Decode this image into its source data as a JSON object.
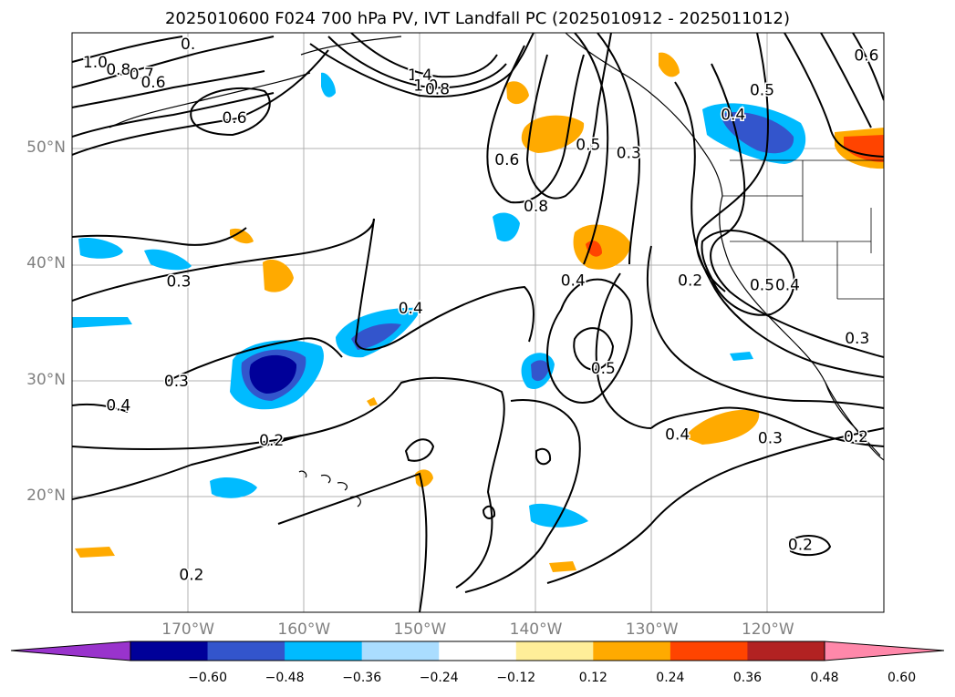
{
  "title": "2025010600 F024 700 hPa PV, IVT Landfall PC (2025010912 - 2025011012)",
  "lat_labels": [
    {
      "text": "50°N",
      "lat": 50
    },
    {
      "text": "40°N",
      "lat": 40
    },
    {
      "text": "30°N",
      "lat": 30
    },
    {
      "text": "20°N",
      "lat": 20
    }
  ],
  "lon_labels": [
    {
      "text": "170°W",
      "lon": -170
    },
    {
      "text": "160°W",
      "lon": -160
    },
    {
      "text": "150°W",
      "lon": -150
    },
    {
      "text": "140°W",
      "lon": -140
    },
    {
      "text": "130°W",
      "lon": -130
    },
    {
      "text": "120°W",
      "lon": -120
    }
  ],
  "extent": {
    "lon_min": -180,
    "lon_max": -110,
    "lat_min": 10,
    "lat_max": 60
  },
  "grid": true,
  "colorbar": {
    "levels": [
      -0.6,
      -0.48,
      -0.36,
      -0.24,
      -0.12,
      0.12,
      0.24,
      0.36,
      0.48,
      0.6
    ],
    "tick_labels": [
      "−0.60",
      "−0.48",
      "−0.36",
      "−0.24",
      "−0.12",
      "0.12",
      "0.24",
      "0.36",
      "0.48",
      "0.60"
    ],
    "under_color": "#9933cc",
    "over_color": "#ff88aa",
    "colors": [
      "#000099",
      "#3355cc",
      "#00bbff",
      "#aaddff",
      "#ffffff",
      "#ffee99",
      "#ffaa00",
      "#ff4400",
      "#b22222"
    ]
  },
  "contour_labels": [
    {
      "text": "1.0",
      "lon": -178,
      "lat": 57
    },
    {
      "text": "0.8",
      "lon": -176,
      "lat": 56.4
    },
    {
      "text": "0.7",
      "lon": -174,
      "lat": 56
    },
    {
      "text": "0.6",
      "lon": -173,
      "lat": 55.3
    },
    {
      "text": "0.",
      "lon": -170,
      "lat": 58.6
    },
    {
      "text": "0.6",
      "lon": -166,
      "lat": 52.2
    },
    {
      "text": "1.4",
      "lon": -150,
      "lat": 55.9
    },
    {
      "text": "1.0",
      "lon": -149.5,
      "lat": 55
    },
    {
      "text": "0.8",
      "lon": -148.5,
      "lat": 54.7
    },
    {
      "text": "0.6",
      "lon": -142.5,
      "lat": 48.6
    },
    {
      "text": "0.8",
      "lon": -140,
      "lat": 44.6
    },
    {
      "text": "0.5",
      "lon": -135.5,
      "lat": 49.9
    },
    {
      "text": "0.3",
      "lon": -132,
      "lat": 49.2
    },
    {
      "text": "0.4",
      "lon": -123,
      "lat": 52.5
    },
    {
      "text": "0.5",
      "lon": -120.5,
      "lat": 54.6
    },
    {
      "text": "0.6",
      "lon": -111.5,
      "lat": 57.6
    },
    {
      "text": "0.3",
      "lon": -170.8,
      "lat": 38.1
    },
    {
      "text": "0.3",
      "lon": -171,
      "lat": 29.5
    },
    {
      "text": "0.4",
      "lon": -176,
      "lat": 27.4
    },
    {
      "text": "0.4",
      "lon": -150.8,
      "lat": 35.8
    },
    {
      "text": "0.4",
      "lon": -136.8,
      "lat": 38.2
    },
    {
      "text": "0.5",
      "lon": -134.2,
      "lat": 30.6
    },
    {
      "text": "0.2",
      "lon": -126.7,
      "lat": 38.2
    },
    {
      "text": "0.5",
      "lon": -120.5,
      "lat": 37.8
    },
    {
      "text": "0.4",
      "lon": -118.3,
      "lat": 37.8
    },
    {
      "text": "0.3",
      "lon": -112.3,
      "lat": 33.2
    },
    {
      "text": "0.4",
      "lon": -127.8,
      "lat": 24.9
    },
    {
      "text": "0.3",
      "lon": -119.8,
      "lat": 24.6
    },
    {
      "text": "0.2",
      "lon": -112.4,
      "lat": 24.7
    },
    {
      "text": "0.2",
      "lon": -162.8,
      "lat": 24.4
    },
    {
      "text": "0.2",
      "lon": -169.7,
      "lat": 12.8
    },
    {
      "text": "0.2",
      "lon": -117.2,
      "lat": 15.4
    }
  ]
}
